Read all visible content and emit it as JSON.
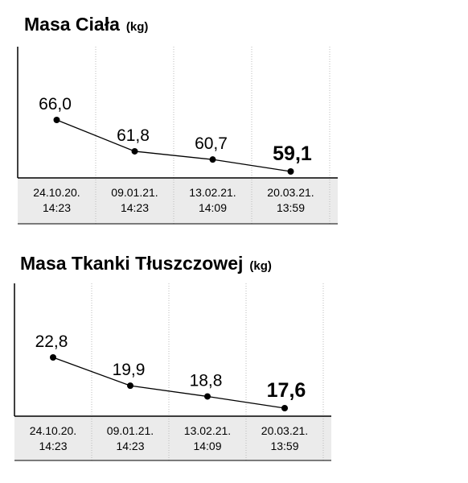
{
  "chart_data": [
    {
      "type": "line",
      "title": "Masa Ciała",
      "unit": "(kg)",
      "categories": [
        "24.10.20. 14:23",
        "09.01.21. 14:23",
        "13.02.21. 14:09",
        "20.03.21. 13:59"
      ],
      "values": [
        66.0,
        61.8,
        60.7,
        59.1
      ],
      "value_labels": [
        "66,0",
        "61,8",
        "60,7",
        "59,1"
      ],
      "color": "#000000"
    },
    {
      "type": "line",
      "title": "Masa Tkanki Tłuszczowej",
      "unit": "(kg)",
      "categories": [
        "24.10.20. 14:23",
        "09.01.21. 14:23",
        "13.02.21. 14:09",
        "20.03.21. 13:59"
      ],
      "values": [
        22.8,
        19.9,
        18.8,
        17.6
      ],
      "value_labels": [
        "22,8",
        "19,9",
        "18,8",
        "17,6"
      ],
      "color": "#000000"
    }
  ]
}
